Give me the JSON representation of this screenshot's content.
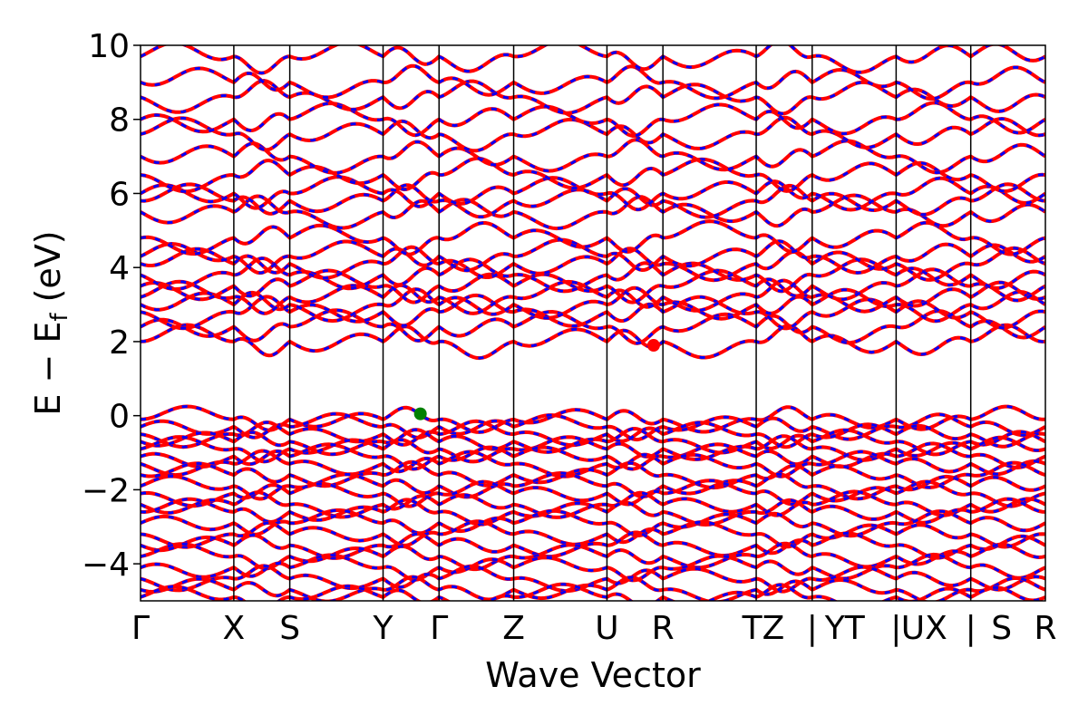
{
  "chart_data": {
    "type": "line",
    "xlabel": "Wave Vector",
    "ylabel_parts": {
      "main": "E − E",
      "sub": "f",
      "unit": " (eV)"
    },
    "ylim": [
      -5,
      10
    ],
    "y_ticks": [
      -4,
      -2,
      0,
      2,
      4,
      6,
      8,
      10
    ],
    "y_tick_labels": [
      "−4",
      "−2",
      "0",
      "2",
      "4",
      "6",
      "8",
      "10"
    ],
    "x_points": [
      {
        "label": "Γ",
        "x": 0.0
      },
      {
        "label": "X",
        "x": 1.0
      },
      {
        "label": "S",
        "x": 1.6
      },
      {
        "label": "Y",
        "x": 2.6
      },
      {
        "label": "Γ",
        "x": 3.2
      },
      {
        "label": "Z",
        "x": 4.0
      },
      {
        "label": "U",
        "x": 5.0
      },
      {
        "label": "R",
        "x": 5.6
      },
      {
        "label": "T",
        "x": 6.6
      },
      {
        "label": "Z | Y",
        "x": 7.2
      },
      {
        "label": "T | U",
        "x": 8.1
      },
      {
        "label": "X | S",
        "x": 8.9
      },
      {
        "label": "R",
        "x": 9.7
      }
    ],
    "x_tick_labels": [
      "Γ",
      "X",
      "S",
      "Y",
      "Γ",
      "Z",
      "U",
      "R",
      "TZ",
      "|",
      "YT",
      "|",
      "UX",
      "|",
      "S",
      "R"
    ],
    "grid": false,
    "legend": "none",
    "series_colors": {
      "spin_up": "#ff0000",
      "spin_down": "#0000ff"
    },
    "markers": [
      {
        "name": "VBM",
        "x": 3.0,
        "y": 0.05,
        "color": "#008000"
      },
      {
        "name": "CBM",
        "x": 5.5,
        "y": 1.9,
        "color": "#ff0000"
      }
    ],
    "band_groups": {
      "conduction": [
        2.0,
        2.4,
        2.8,
        3.0,
        3.2,
        3.5,
        3.8,
        4.1,
        4.3,
        4.8,
        5.5,
        5.8,
        6.0,
        6.5,
        7.0,
        7.6,
        8.0,
        8.6,
        9.0,
        9.7
      ],
      "valence": [
        -0.1,
        -0.3,
        -0.5,
        -0.7,
        -0.9,
        -1.1,
        -1.3,
        -1.6,
        -1.9,
        -2.1,
        -2.4,
        -2.6,
        -2.9,
        -3.2,
        -3.5,
        -3.8,
        -4.1,
        -4.4,
        -4.7,
        -4.9
      ]
    }
  }
}
